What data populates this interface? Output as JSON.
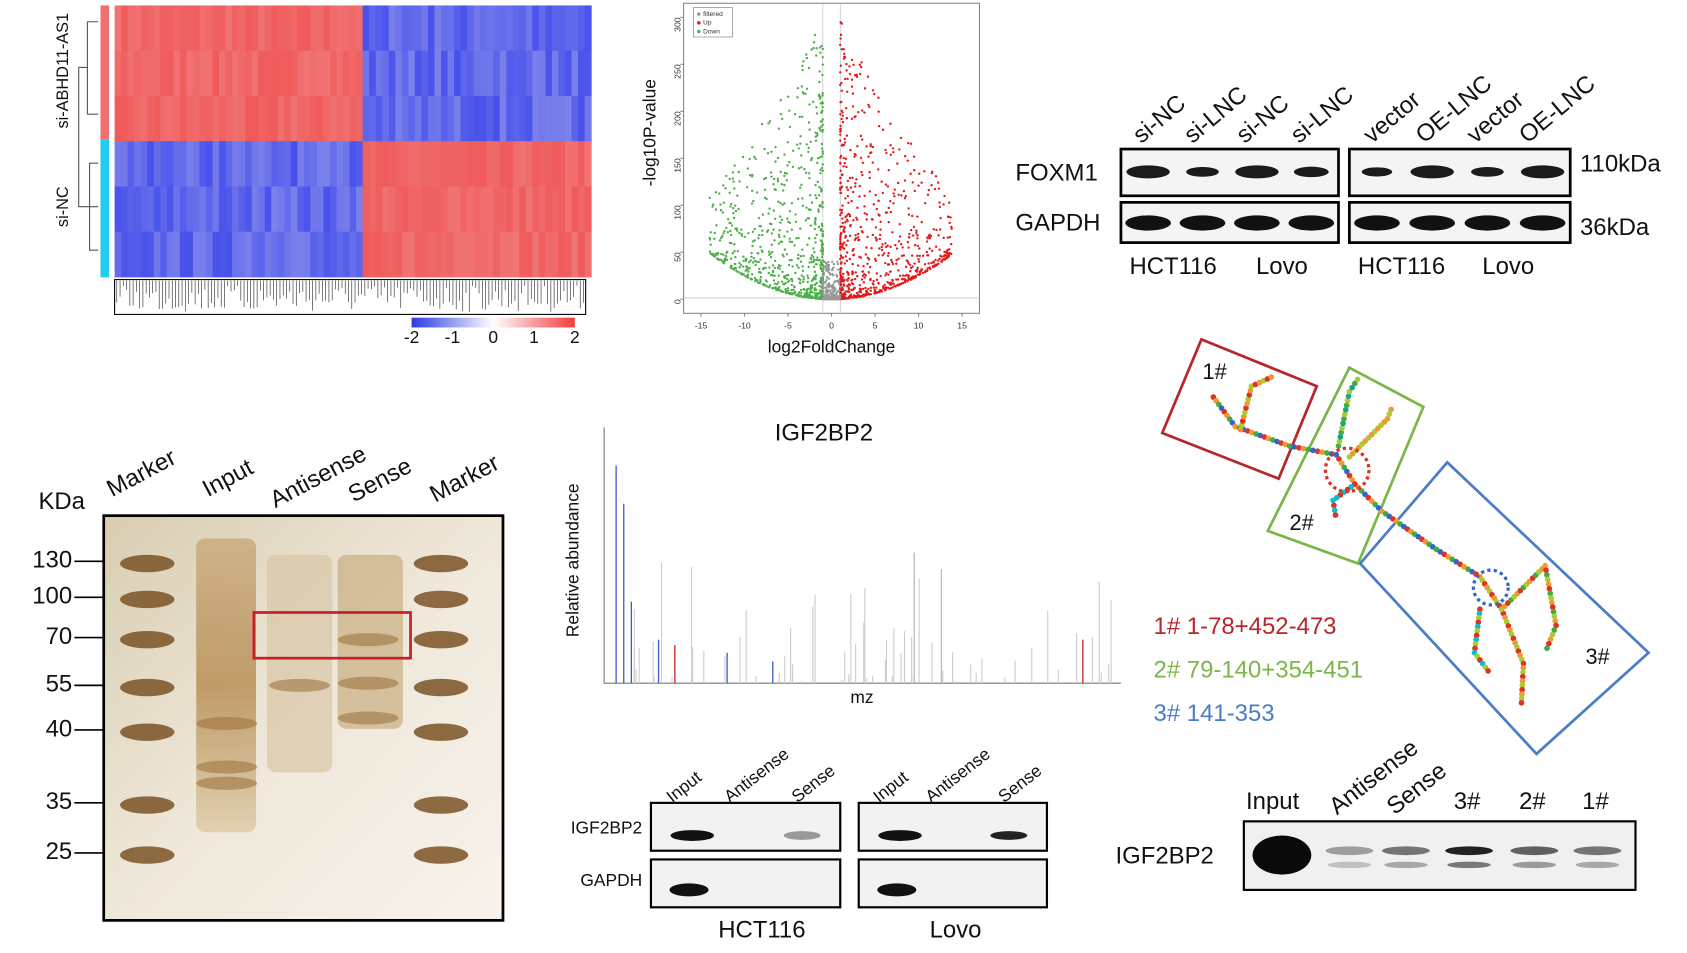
{
  "heatmap": {
    "row_labels": [
      "si-ABHD11-AS1",
      "si-NC"
    ],
    "colorbar_ticks": [
      -2,
      -1,
      0,
      1,
      2
    ]
  },
  "volcano": {
    "y_label": "-log10P-value",
    "x_label": "log2FoldChange",
    "legend": [
      "filtered",
      "Up",
      "Down"
    ],
    "xlim": [
      -17,
      17
    ],
    "ylim": [
      -15,
      315
    ],
    "xticks": [
      -15,
      -10,
      -5,
      0,
      5,
      10,
      15
    ],
    "yticks": [
      0,
      50,
      100,
      150,
      200,
      250,
      300
    ]
  },
  "western": {
    "lanes": [
      "si-NC",
      "si-LNC",
      "si-NC",
      "si-LNC",
      "vector",
      "OE-LNC",
      "vector",
      "OE-LNC"
    ],
    "proteins": [
      "FOXM1",
      "GAPDH"
    ],
    "sizes": [
      "110kDa",
      "36kDa"
    ],
    "cells": [
      "HCT116",
      "Lovo",
      "HCT116",
      "Lovo"
    ]
  },
  "gel": {
    "unit": "KDa",
    "lanes": [
      "Marker",
      "Input",
      "Antisense",
      "Sense",
      "Marker"
    ],
    "markers": [
      130,
      100,
      70,
      55,
      40,
      35,
      25
    ]
  },
  "ms": {
    "title": "IGF2BP2",
    "y_label": "Relative abundance",
    "x_label": "mz"
  },
  "rip": {
    "lanes": [
      "Input",
      "Antisense",
      "Sense",
      "Input",
      "Antisense",
      "Sense"
    ],
    "proteins": [
      "IGF2BP2",
      "GAPDH"
    ],
    "cells": [
      "HCT116",
      "Lovo"
    ]
  },
  "structure": {
    "regions": [
      {
        "box_label": "1#",
        "legend": "1# 1-78+452-473",
        "color": "#b8262b"
      },
      {
        "box_label": "2#",
        "legend": "2# 79-140+354-451",
        "color": "#7ab648"
      },
      {
        "box_label": "3#",
        "legend": "3# 141-353",
        "color": "#4a7cc7"
      }
    ]
  },
  "pulldown": {
    "lanes": [
      "Input",
      "Antisense",
      "Sense",
      "3#",
      "2#",
      "1#"
    ],
    "protein": "IGF2BP2"
  }
}
